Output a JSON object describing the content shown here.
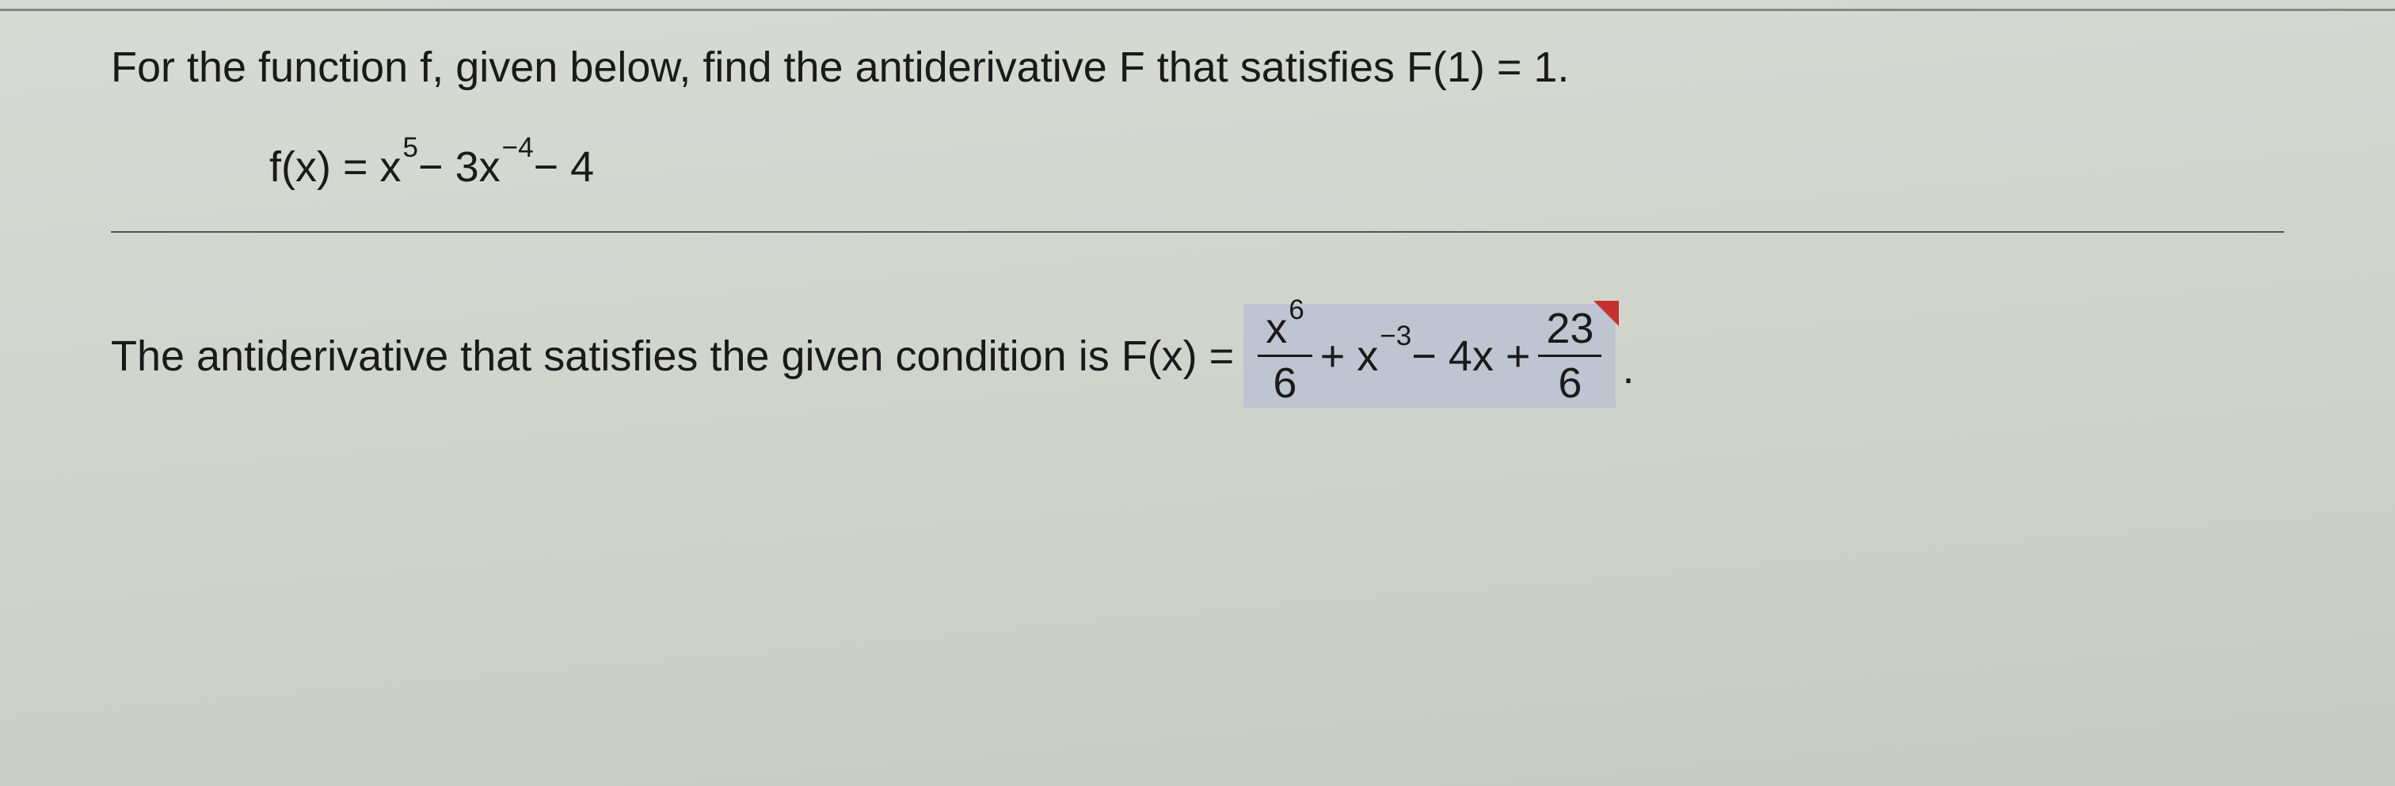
{
  "question": {
    "prompt": "For the function f, given below, find the antiderivative F that satisfies F(1) = 1.",
    "formula": {
      "lhs": "f(x) = x",
      "exp1": "5",
      "mid1": " − 3x",
      "exp2": "−4",
      "tail": " − 4"
    }
  },
  "answer": {
    "lead": "The antiderivative that satisfies the given condition is F(x) =",
    "frac1_num_base": "x",
    "frac1_num_exp": "6",
    "frac1_den": "6",
    "plus1": " + x",
    "exp_neg3": "−3",
    "mid": " − 4x + ",
    "frac2_num": "23",
    "frac2_den": "6",
    "period": "."
  },
  "styling": {
    "background_color": "#d4d6d0",
    "text_color": "#1a1a1a",
    "highlight_color": "#bfc4d1",
    "triangle_color": "#c73030",
    "font_size_main": 54,
    "font_size_sup": 35,
    "divider_color": "#555555"
  }
}
